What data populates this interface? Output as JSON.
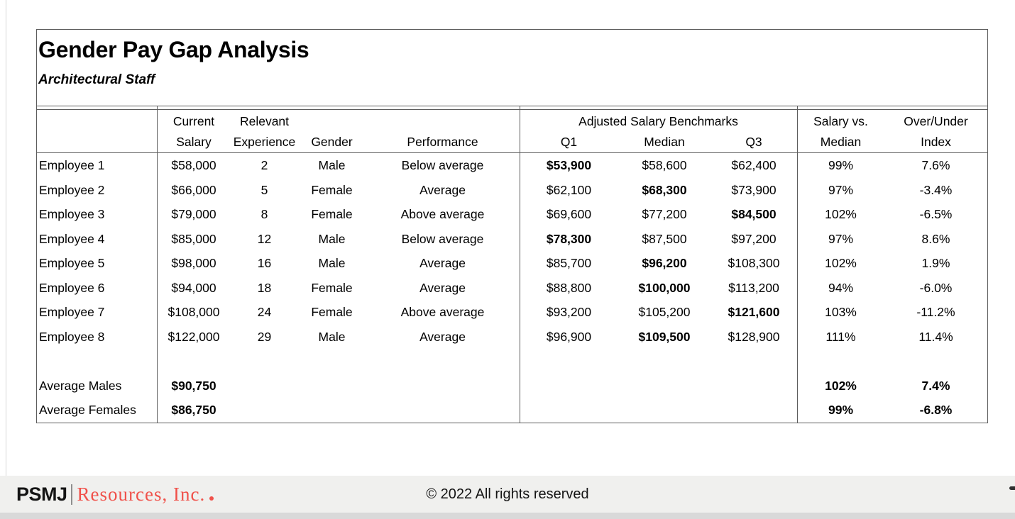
{
  "report": {
    "title": "Gender Pay Gap Analysis",
    "subtitle": "Architectural Staff",
    "headers": {
      "current_l1": "Current",
      "current_l2": "Salary",
      "experience_l1": "Relevant",
      "experience_l2": "Experience",
      "gender": "Gender",
      "performance": "Performance",
      "benchmarks": "Adjusted Salary Benchmarks",
      "q1": "Q1",
      "median": "Median",
      "q3": "Q3",
      "salary_vs_l1": "Salary vs.",
      "salary_vs_l2": "Median",
      "over_under_l1": "Over/Under",
      "over_under_l2": "Index"
    },
    "rows": [
      {
        "name": "Employee 1",
        "salary": "$58,000",
        "experience": "2",
        "gender": "Male",
        "performance": "Below average",
        "q1": "$53,900",
        "median": "$58,600",
        "q3": "$62,400",
        "bold": "q1",
        "svm": "99%",
        "oui": "7.6%"
      },
      {
        "name": "Employee 2",
        "salary": "$66,000",
        "experience": "5",
        "gender": "Female",
        "performance": "Average",
        "q1": "$62,100",
        "median": "$68,300",
        "q3": "$73,900",
        "bold": "median",
        "svm": "97%",
        "oui": "-3.4%"
      },
      {
        "name": "Employee 3",
        "salary": "$79,000",
        "experience": "8",
        "gender": "Female",
        "performance": "Above average",
        "q1": "$69,600",
        "median": "$77,200",
        "q3": "$84,500",
        "bold": "q3",
        "svm": "102%",
        "oui": "-6.5%"
      },
      {
        "name": "Employee 4",
        "salary": "$85,000",
        "experience": "12",
        "gender": "Male",
        "performance": "Below average",
        "q1": "$78,300",
        "median": "$87,500",
        "q3": "$97,200",
        "bold": "q1",
        "svm": "97%",
        "oui": "8.6%"
      },
      {
        "name": "Employee 5",
        "salary": "$98,000",
        "experience": "16",
        "gender": "Male",
        "performance": "Average",
        "q1": "$85,700",
        "median": "$96,200",
        "q3": "$108,300",
        "bold": "median",
        "svm": "102%",
        "oui": "1.9%"
      },
      {
        "name": "Employee 6",
        "salary": "$94,000",
        "experience": "18",
        "gender": "Female",
        "performance": "Average",
        "q1": "$88,800",
        "median": "$100,000",
        "q3": "$113,200",
        "bold": "median",
        "svm": "94%",
        "oui": "-6.0%"
      },
      {
        "name": "Employee 7",
        "salary": "$108,000",
        "experience": "24",
        "gender": "Female",
        "performance": "Above average",
        "q1": "$93,200",
        "median": "$105,200",
        "q3": "$121,600",
        "bold": "q3",
        "svm": "103%",
        "oui": "-11.2%"
      },
      {
        "name": "Employee 8",
        "salary": "$122,000",
        "experience": "29",
        "gender": "Male",
        "performance": "Average",
        "q1": "$96,900",
        "median": "$109,500",
        "q3": "$128,900",
        "bold": "median",
        "svm": "111%",
        "oui": "11.4%"
      }
    ],
    "summary": [
      {
        "name": "Average Males",
        "salary": "$90,750",
        "svm": "102%",
        "oui": "7.4%"
      },
      {
        "name": "Average Females",
        "salary": "$86,750",
        "svm": "99%",
        "oui": "-6.8%"
      }
    ]
  },
  "footer": {
    "brand_psmj": "PSMJ",
    "brand_resources": "Resources, Inc.",
    "copyright": "© 2022 All rights reserved"
  },
  "colors": {
    "brand_red": "#f0514a",
    "footer_bg": "#f0f0ee",
    "bottom_strip": "#d9d9d9",
    "table_line": "#5c5c5c"
  }
}
